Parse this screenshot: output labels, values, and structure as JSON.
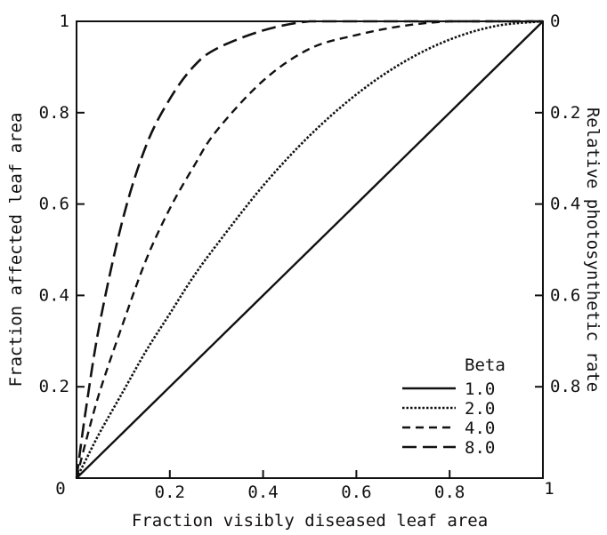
{
  "chart_data": {
    "type": "line",
    "title": "",
    "xlabel": "Fraction visibly diseased leaf area",
    "ylabel": "Fraction affected leaf area",
    "y2label": "Relative photosynthetic rate",
    "xlim": [
      0,
      1
    ],
    "ylim": [
      0,
      1
    ],
    "y2lim": [
      1,
      0
    ],
    "x_ticks": [
      "0",
      "0.2",
      "0.4",
      "0.6",
      "0.8",
      "1"
    ],
    "y_ticks": [
      "0",
      "0.2",
      "0.4",
      "0.6",
      "0.8",
      "1"
    ],
    "y2_ticks": [
      "1",
      "0.8",
      "0.6",
      "0.4",
      "0.2",
      "0"
    ],
    "grid": false,
    "legend_title": "Beta",
    "legend_placement": "bottom-right",
    "x": [
      0,
      0.02,
      0.05,
      0.1,
      0.15,
      0.2,
      0.25,
      0.3,
      0.4,
      0.5,
      0.6,
      0.7,
      0.8,
      0.9,
      1.0
    ],
    "series": [
      {
        "name": "1.0",
        "style": "solid",
        "values": [
          0,
          0.02,
          0.05,
          0.1,
          0.15,
          0.2,
          0.25,
          0.3,
          0.4,
          0.5,
          0.6,
          0.7,
          0.8,
          0.9,
          1.0
        ]
      },
      {
        "name": "2.0",
        "style": "dotted",
        "values": [
          0,
          0.04,
          0.1,
          0.19,
          0.28,
          0.36,
          0.44,
          0.51,
          0.64,
          0.75,
          0.84,
          0.91,
          0.96,
          0.99,
          1.0
        ]
      },
      {
        "name": "4.0",
        "style": "dashed",
        "values": [
          0,
          0.08,
          0.19,
          0.34,
          0.48,
          0.59,
          0.68,
          0.76,
          0.87,
          0.94,
          0.97,
          0.99,
          1.0,
          1.0,
          1.0
        ]
      },
      {
        "name": "8.0",
        "style": "longdash",
        "values": [
          0,
          0.15,
          0.34,
          0.57,
          0.73,
          0.83,
          0.9,
          0.94,
          0.98,
          1.0,
          1.0,
          1.0,
          1.0,
          1.0,
          1.0
        ]
      }
    ],
    "colors": {
      "line": "#111111",
      "background": "#ffffff"
    }
  }
}
